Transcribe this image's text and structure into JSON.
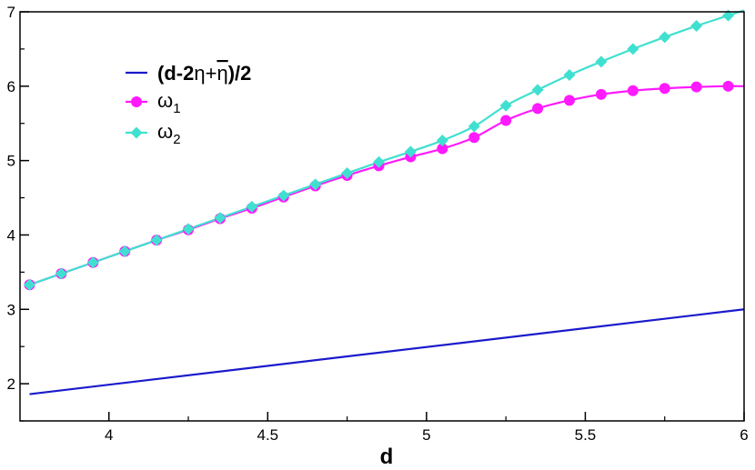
{
  "chart_data": {
    "type": "line",
    "xlabel": "d",
    "ylabel": "",
    "xlim": [
      3.72,
      6.0
    ],
    "ylim": [
      1.5,
      7.0
    ],
    "x_ticks": [
      4,
      4.5,
      5,
      5.5,
      6
    ],
    "y_ticks": [
      2,
      3,
      4,
      5,
      6,
      7
    ],
    "x_tick_labels": [
      "4",
      "4.5",
      "5",
      "5.5",
      "6"
    ],
    "y_tick_labels": [
      "2",
      "3",
      "4",
      "5",
      "6",
      "7"
    ],
    "legend_position": "top-left",
    "series": [
      {
        "name": "(d-2η+η)/2",
        "legend_parts": [
          "(d-2",
          "η",
          "+",
          "η",
          ")/2"
        ],
        "color": "#1a1acc",
        "marker": "none",
        "x": [
          3.75,
          6.0
        ],
        "y": [
          1.86,
          3.0
        ]
      },
      {
        "name": "ω1",
        "legend_symbol": "ω",
        "legend_subscript": "1",
        "color": "#ff1aff",
        "marker": "circle",
        "x": [
          3.75,
          3.85,
          3.95,
          4.05,
          4.15,
          4.25,
          4.35,
          4.45,
          4.55,
          4.65,
          4.75,
          4.85,
          4.95,
          5.05,
          5.15,
          5.25,
          5.35,
          5.45,
          5.55,
          5.65,
          5.75,
          5.85,
          5.95
        ],
        "y": [
          3.33,
          3.48,
          3.63,
          3.78,
          3.93,
          4.07,
          4.22,
          4.36,
          4.51,
          4.66,
          4.8,
          4.93,
          5.05,
          5.16,
          5.31,
          5.54,
          5.7,
          5.81,
          5.89,
          5.94,
          5.97,
          5.99,
          6.0
        ]
      },
      {
        "name": "ω2",
        "legend_symbol": "ω",
        "legend_subscript": "2",
        "color": "#40e0d0",
        "marker": "diamond",
        "x": [
          3.75,
          3.85,
          3.95,
          4.05,
          4.15,
          4.25,
          4.35,
          4.45,
          4.55,
          4.65,
          4.75,
          4.85,
          4.95,
          5.05,
          5.15,
          5.25,
          5.35,
          5.45,
          5.55,
          5.65,
          5.75,
          5.85,
          5.95
        ],
        "y": [
          3.33,
          3.48,
          3.63,
          3.78,
          3.93,
          4.08,
          4.23,
          4.38,
          4.53,
          4.68,
          4.83,
          4.98,
          5.12,
          5.27,
          5.46,
          5.74,
          5.95,
          6.15,
          6.33,
          6.5,
          6.66,
          6.81,
          6.95
        ]
      }
    ]
  }
}
